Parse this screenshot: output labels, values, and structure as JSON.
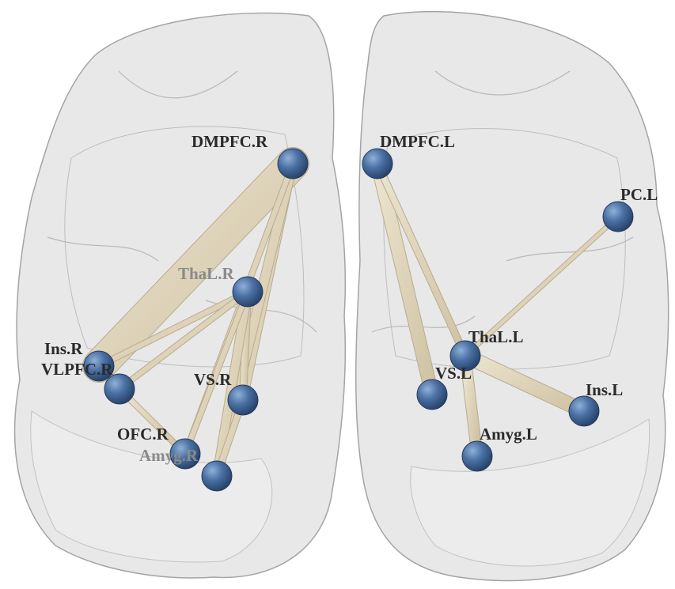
{
  "colors": {
    "node": "#3f6496",
    "node_highlight": "#7a9cc8",
    "edge": "#ddd2b8",
    "edge_shadow": "#b8ab8e",
    "brain_fill": "#d9d9d9",
    "brain_stroke": "#a8a8a8"
  },
  "hemispheres": [
    {
      "name": "right-hemisphere"
    },
    {
      "name": "left-hemisphere"
    }
  ],
  "nodes": [
    {
      "id": "dmpfc-r",
      "label": "DMPFC.R",
      "faded": false
    },
    {
      "id": "thal-r",
      "label": "ThaL.R",
      "faded": true
    },
    {
      "id": "ins-r",
      "label": "Ins.R",
      "faded": false
    },
    {
      "id": "vlpfc-r",
      "label": "VLPFC.R",
      "faded": false
    },
    {
      "id": "vs-r",
      "label": "VS.R",
      "faded": false
    },
    {
      "id": "ofc-r",
      "label": "OFC.R",
      "faded": false
    },
    {
      "id": "amyg-r",
      "label": "Amyg.R",
      "faded": true
    },
    {
      "id": "dmpfc-l",
      "label": "DMPFC.L",
      "faded": false
    },
    {
      "id": "pc-l",
      "label": "PC.L",
      "faded": false
    },
    {
      "id": "thal-l",
      "label": "ThaL.L",
      "faded": false
    },
    {
      "id": "vs-l",
      "label": "VS.L",
      "faded": false
    },
    {
      "id": "ins-l",
      "label": "Ins.L",
      "faded": false
    },
    {
      "id": "amyg-l",
      "label": "Amyg.L",
      "faded": false
    }
  ],
  "edges": [
    {
      "from": "dmpfc-r",
      "to": "ins-r",
      "weight": 5
    },
    {
      "from": "dmpfc-r",
      "to": "vs-r",
      "weight": 1.2
    },
    {
      "from": "dmpfc-r",
      "to": "amyg-r",
      "weight": 1.4
    },
    {
      "from": "dmpfc-r",
      "to": "ofc-r",
      "weight": 0.8
    },
    {
      "from": "thal-r",
      "to": "ins-r",
      "weight": 0.8
    },
    {
      "from": "thal-r",
      "to": "vlpfc-r",
      "weight": 0.8
    },
    {
      "from": "thal-r",
      "to": "vs-r",
      "weight": 1
    },
    {
      "from": "thal-r",
      "to": "amyg-r",
      "weight": 1.3
    },
    {
      "from": "thal-r",
      "to": "ofc-r",
      "weight": 0.8
    },
    {
      "from": "vlpfc-r",
      "to": "ofc-r",
      "weight": 0.8
    },
    {
      "from": "vs-r",
      "to": "amyg-r",
      "weight": 0.9
    },
    {
      "from": "dmpfc-l",
      "to": "vs-l",
      "weight": 2
    },
    {
      "from": "dmpfc-l",
      "to": "thal-l",
      "weight": 1
    },
    {
      "from": "thal-l",
      "to": "ins-l",
      "weight": 2.2
    },
    {
      "from": "thal-l",
      "to": "amyg-l",
      "weight": 1.6
    },
    {
      "from": "thal-l",
      "to": "pc-l",
      "weight": 0.6
    }
  ]
}
